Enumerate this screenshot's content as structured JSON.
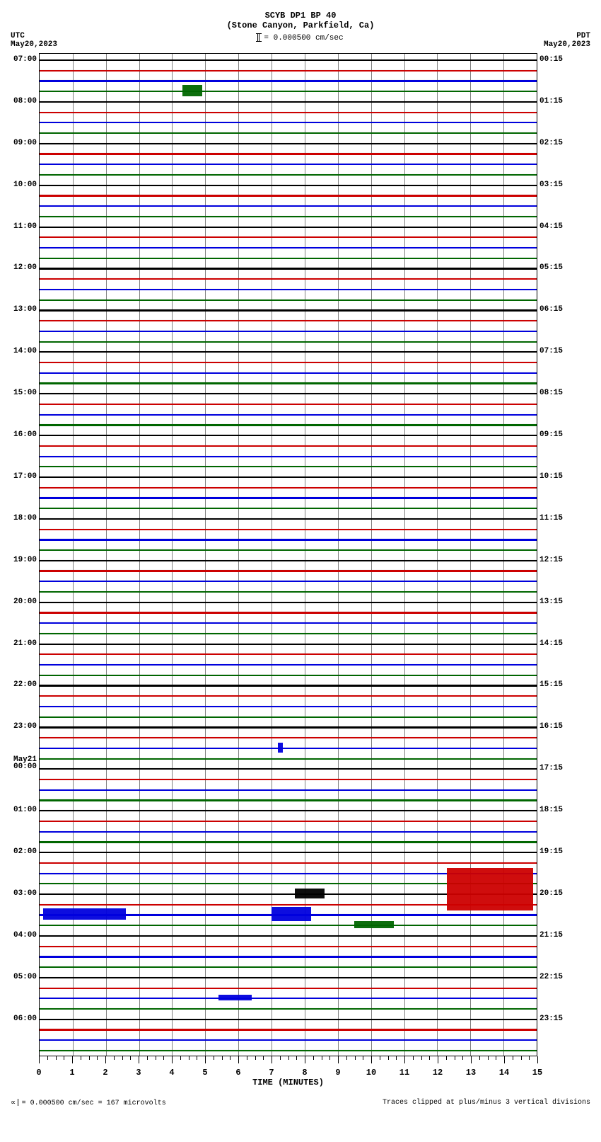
{
  "header": {
    "title1": "SCYB DP1 BP 40",
    "title2": "(Stone Canyon, Parkfield, Ca)",
    "scale_text": "= 0.000500 cm/sec",
    "left_tz": "UTC",
    "left_date": "May20,2023",
    "right_tz": "PDT",
    "right_date": "May20,2023"
  },
  "colors": {
    "c0": "#000000",
    "c1": "#cc0000",
    "c2": "#0000dd",
    "c3": "#006600",
    "grid": "#808080",
    "bg": "#ffffff"
  },
  "plot": {
    "n_traces": 96,
    "trace_height": 2.2,
    "minutes": 15,
    "area_h": 1415
  },
  "left_labels": [
    {
      "i": 0,
      "t": "07:00"
    },
    {
      "i": 4,
      "t": "08:00"
    },
    {
      "i": 8,
      "t": "09:00"
    },
    {
      "i": 12,
      "t": "10:00"
    },
    {
      "i": 16,
      "t": "11:00"
    },
    {
      "i": 20,
      "t": "12:00"
    },
    {
      "i": 24,
      "t": "13:00"
    },
    {
      "i": 28,
      "t": "14:00"
    },
    {
      "i": 32,
      "t": "15:00"
    },
    {
      "i": 36,
      "t": "16:00"
    },
    {
      "i": 40,
      "t": "17:00"
    },
    {
      "i": 44,
      "t": "18:00"
    },
    {
      "i": 48,
      "t": "19:00"
    },
    {
      "i": 52,
      "t": "20:00"
    },
    {
      "i": 56,
      "t": "21:00"
    },
    {
      "i": 60,
      "t": "22:00"
    },
    {
      "i": 64,
      "t": "23:00"
    },
    {
      "i": 68,
      "t": "00:00",
      "pre": "May21"
    },
    {
      "i": 72,
      "t": "01:00"
    },
    {
      "i": 76,
      "t": "02:00"
    },
    {
      "i": 80,
      "t": "03:00"
    },
    {
      "i": 84,
      "t": "04:00"
    },
    {
      "i": 88,
      "t": "05:00"
    },
    {
      "i": 92,
      "t": "06:00"
    }
  ],
  "right_labels": [
    {
      "i": 0,
      "t": "00:15"
    },
    {
      "i": 4,
      "t": "01:15"
    },
    {
      "i": 8,
      "t": "02:15"
    },
    {
      "i": 12,
      "t": "03:15"
    },
    {
      "i": 16,
      "t": "04:15"
    },
    {
      "i": 20,
      "t": "05:15"
    },
    {
      "i": 24,
      "t": "06:15"
    },
    {
      "i": 28,
      "t": "07:15"
    },
    {
      "i": 32,
      "t": "08:15"
    },
    {
      "i": 36,
      "t": "09:15"
    },
    {
      "i": 40,
      "t": "10:15"
    },
    {
      "i": 44,
      "t": "11:15"
    },
    {
      "i": 48,
      "t": "12:15"
    },
    {
      "i": 52,
      "t": "13:15"
    },
    {
      "i": 56,
      "t": "14:15"
    },
    {
      "i": 60,
      "t": "15:15"
    },
    {
      "i": 64,
      "t": "16:15"
    },
    {
      "i": 68,
      "t": "17:15"
    },
    {
      "i": 72,
      "t": "18:15"
    },
    {
      "i": 76,
      "t": "19:15"
    },
    {
      "i": 80,
      "t": "20:15"
    },
    {
      "i": 84,
      "t": "21:15"
    },
    {
      "i": 88,
      "t": "22:15"
    },
    {
      "i": 92,
      "t": "23:15"
    }
  ],
  "events": [
    {
      "trace": 3,
      "x": 4.3,
      "w": 0.6,
      "h": 16,
      "color": "#006600"
    },
    {
      "trace": 66,
      "x": 7.2,
      "w": 0.15,
      "h": 14,
      "color": "#0000dd"
    },
    {
      "trace": 79,
      "x": 12.3,
      "w": 2.6,
      "h": 42,
      "color": "#cc0000"
    },
    {
      "trace": 80,
      "x": 7.7,
      "w": 0.9,
      "h": 14,
      "color": "#000000"
    },
    {
      "trace": 81,
      "x": 12.3,
      "w": 2.6,
      "h": 18,
      "color": "#cc0000"
    },
    {
      "trace": 82,
      "x": 0.1,
      "w": 2.5,
      "h": 16,
      "color": "#0000dd"
    },
    {
      "trace": 82,
      "x": 7.0,
      "w": 1.2,
      "h": 20,
      "color": "#0000dd"
    },
    {
      "trace": 83,
      "x": 9.5,
      "w": 1.2,
      "h": 10,
      "color": "#006600"
    },
    {
      "trace": 90,
      "x": 5.4,
      "w": 1.0,
      "h": 8,
      "color": "#0000dd"
    }
  ],
  "x_axis": {
    "title": "TIME (MINUTES)",
    "ticks": [
      0,
      1,
      2,
      3,
      4,
      5,
      6,
      7,
      8,
      9,
      10,
      11,
      12,
      13,
      14,
      15
    ]
  },
  "footer": {
    "left": "= 0.000500 cm/sec =    167 microvolts",
    "right": "Traces clipped at plus/minus 3 vertical divisions"
  }
}
